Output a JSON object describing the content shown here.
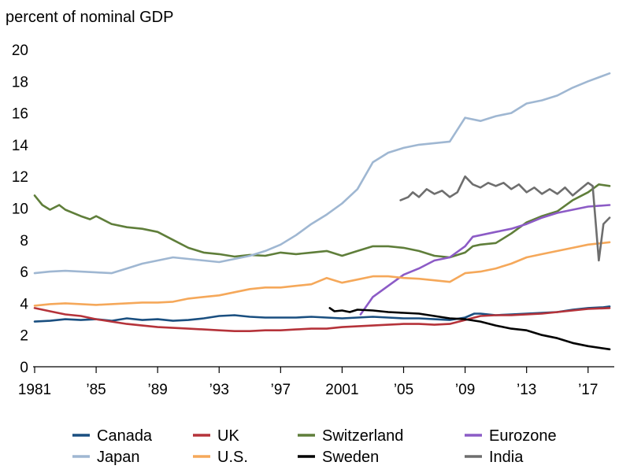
{
  "chart_data": {
    "type": "line",
    "title": "",
    "xlabel": "",
    "ylabel": "percent of nominal GDP",
    "xlim": [
      1981,
      2018.6
    ],
    "ylim": [
      0,
      20
    ],
    "y_ticks": [
      0,
      2,
      4,
      6,
      8,
      10,
      12,
      14,
      16,
      18,
      20
    ],
    "x_ticks": [
      {
        "value": 1981,
        "label": "1981"
      },
      {
        "value": 1985,
        "label": "’85"
      },
      {
        "value": 1989,
        "label": "’89"
      },
      {
        "value": 1993,
        "label": "’93"
      },
      {
        "value": 1997,
        "label": "’97"
      },
      {
        "value": 2001,
        "label": "2001"
      },
      {
        "value": 2005,
        "label": "’05"
      },
      {
        "value": 2009,
        "label": "’09"
      },
      {
        "value": 2013,
        "label": "’13"
      },
      {
        "value": 2017,
        "label": "’17"
      }
    ],
    "grid": false,
    "legend_position": "bottom",
    "series": [
      {
        "name": "Canada",
        "color": "#1a4f80",
        "points": [
          [
            1981,
            2.85
          ],
          [
            1982,
            2.9
          ],
          [
            1983,
            3.0
          ],
          [
            1984,
            2.95
          ],
          [
            1985,
            3.0
          ],
          [
            1986,
            2.9
          ],
          [
            1987,
            3.05
          ],
          [
            1988,
            2.95
          ],
          [
            1989,
            3.0
          ],
          [
            1990,
            2.9
          ],
          [
            1991,
            2.95
          ],
          [
            1992,
            3.05
          ],
          [
            1993,
            3.2
          ],
          [
            1994,
            3.25
          ],
          [
            1995,
            3.15
          ],
          [
            1996,
            3.1
          ],
          [
            1997,
            3.1
          ],
          [
            1998,
            3.1
          ],
          [
            1999,
            3.15
          ],
          [
            2000,
            3.1
          ],
          [
            2001,
            3.05
          ],
          [
            2002,
            3.1
          ],
          [
            2003,
            3.15
          ],
          [
            2004,
            3.1
          ],
          [
            2005,
            3.05
          ],
          [
            2006,
            3.05
          ],
          [
            2007,
            3.0
          ],
          [
            2008,
            2.95
          ],
          [
            2009,
            3.1
          ],
          [
            2009.6,
            3.35
          ],
          [
            2010,
            3.35
          ],
          [
            2011,
            3.25
          ],
          [
            2012,
            3.3
          ],
          [
            2013,
            3.35
          ],
          [
            2014,
            3.4
          ],
          [
            2015,
            3.45
          ],
          [
            2016,
            3.6
          ],
          [
            2017,
            3.7
          ],
          [
            2018,
            3.75
          ],
          [
            2018.4,
            3.8
          ]
        ]
      },
      {
        "name": "UK",
        "color": "#b5333a",
        "points": [
          [
            1981,
            3.7
          ],
          [
            1982,
            3.5
          ],
          [
            1983,
            3.3
          ],
          [
            1984,
            3.2
          ],
          [
            1985,
            3.0
          ],
          [
            1986,
            2.85
          ],
          [
            1987,
            2.7
          ],
          [
            1988,
            2.6
          ],
          [
            1989,
            2.5
          ],
          [
            1990,
            2.45
          ],
          [
            1991,
            2.4
          ],
          [
            1992,
            2.35
          ],
          [
            1993,
            2.3
          ],
          [
            1994,
            2.25
          ],
          [
            1995,
            2.25
          ],
          [
            1996,
            2.3
          ],
          [
            1997,
            2.3
          ],
          [
            1998,
            2.35
          ],
          [
            1999,
            2.4
          ],
          [
            2000,
            2.4
          ],
          [
            2001,
            2.5
          ],
          [
            2002,
            2.55
          ],
          [
            2003,
            2.6
          ],
          [
            2004,
            2.65
          ],
          [
            2005,
            2.7
          ],
          [
            2006,
            2.7
          ],
          [
            2007,
            2.65
          ],
          [
            2008,
            2.7
          ],
          [
            2009,
            2.95
          ],
          [
            2010,
            3.2
          ],
          [
            2011,
            3.25
          ],
          [
            2012,
            3.25
          ],
          [
            2013,
            3.3
          ],
          [
            2014,
            3.35
          ],
          [
            2015,
            3.45
          ],
          [
            2016,
            3.55
          ],
          [
            2017,
            3.65
          ],
          [
            2018.4,
            3.7
          ]
        ]
      },
      {
        "name": "Switzerland",
        "color": "#5f7e3a",
        "points": [
          [
            1981,
            10.8
          ],
          [
            1981.5,
            10.2
          ],
          [
            1982,
            9.9
          ],
          [
            1982.6,
            10.2
          ],
          [
            1983,
            9.9
          ],
          [
            1984,
            9.5
          ],
          [
            1984.6,
            9.3
          ],
          [
            1985,
            9.5
          ],
          [
            1986,
            9.0
          ],
          [
            1987,
            8.8
          ],
          [
            1988,
            8.7
          ],
          [
            1989,
            8.5
          ],
          [
            1990,
            8.0
          ],
          [
            1991,
            7.5
          ],
          [
            1992,
            7.2
          ],
          [
            1993,
            7.1
          ],
          [
            1994,
            6.95
          ],
          [
            1995,
            7.05
          ],
          [
            1996,
            7.0
          ],
          [
            1997,
            7.2
          ],
          [
            1998,
            7.1
          ],
          [
            1999,
            7.2
          ],
          [
            2000,
            7.3
          ],
          [
            2001,
            7.0
          ],
          [
            2002,
            7.3
          ],
          [
            2003,
            7.6
          ],
          [
            2004,
            7.6
          ],
          [
            2005,
            7.5
          ],
          [
            2006,
            7.3
          ],
          [
            2007,
            7.0
          ],
          [
            2008,
            6.9
          ],
          [
            2009,
            7.2
          ],
          [
            2009.5,
            7.6
          ],
          [
            2010,
            7.7
          ],
          [
            2011,
            7.8
          ],
          [
            2012,
            8.4
          ],
          [
            2013,
            9.1
          ],
          [
            2014,
            9.5
          ],
          [
            2015,
            9.8
          ],
          [
            2016,
            10.5
          ],
          [
            2017,
            11.0
          ],
          [
            2017.7,
            11.5
          ],
          [
            2018.4,
            11.4
          ]
        ]
      },
      {
        "name": "Eurozone",
        "color": "#8c5bc6",
        "points": [
          [
            2002.2,
            3.3
          ],
          [
            2003,
            4.4
          ],
          [
            2004,
            5.1
          ],
          [
            2005,
            5.8
          ],
          [
            2006,
            6.2
          ],
          [
            2007,
            6.7
          ],
          [
            2008,
            6.9
          ],
          [
            2009,
            7.6
          ],
          [
            2009.5,
            8.2
          ],
          [
            2010,
            8.3
          ],
          [
            2011,
            8.5
          ],
          [
            2012,
            8.7
          ],
          [
            2013,
            9.0
          ],
          [
            2014,
            9.4
          ],
          [
            2015,
            9.7
          ],
          [
            2016,
            9.9
          ],
          [
            2017,
            10.1
          ],
          [
            2018.4,
            10.2
          ]
        ]
      },
      {
        "name": "Japan",
        "color": "#9fb7d2",
        "points": [
          [
            1981,
            5.9
          ],
          [
            1982,
            6.0
          ],
          [
            1983,
            6.05
          ],
          [
            1984,
            6.0
          ],
          [
            1985,
            5.95
          ],
          [
            1986,
            5.9
          ],
          [
            1987,
            6.2
          ],
          [
            1988,
            6.5
          ],
          [
            1989,
            6.7
          ],
          [
            1990,
            6.9
          ],
          [
            1991,
            6.8
          ],
          [
            1992,
            6.7
          ],
          [
            1993,
            6.6
          ],
          [
            1994,
            6.8
          ],
          [
            1995,
            7.0
          ],
          [
            1996,
            7.3
          ],
          [
            1997,
            7.7
          ],
          [
            1998,
            8.3
          ],
          [
            1999,
            9.0
          ],
          [
            2000,
            9.6
          ],
          [
            2001,
            10.3
          ],
          [
            2002,
            11.2
          ],
          [
            2003,
            12.9
          ],
          [
            2004,
            13.5
          ],
          [
            2005,
            13.8
          ],
          [
            2006,
            14.0
          ],
          [
            2007,
            14.1
          ],
          [
            2008,
            14.2
          ],
          [
            2009,
            15.7
          ],
          [
            2010,
            15.5
          ],
          [
            2011,
            15.8
          ],
          [
            2012,
            16.0
          ],
          [
            2013,
            16.6
          ],
          [
            2014,
            16.8
          ],
          [
            2015,
            17.1
          ],
          [
            2016,
            17.6
          ],
          [
            2017,
            18.0
          ],
          [
            2018.4,
            18.5
          ]
        ]
      },
      {
        "name": "U.S.",
        "color": "#f5a85a",
        "points": [
          [
            1981,
            3.85
          ],
          [
            1982,
            3.95
          ],
          [
            1983,
            4.0
          ],
          [
            1984,
            3.95
          ],
          [
            1985,
            3.9
          ],
          [
            1986,
            3.95
          ],
          [
            1987,
            4.0
          ],
          [
            1988,
            4.05
          ],
          [
            1989,
            4.05
          ],
          [
            1990,
            4.1
          ],
          [
            1991,
            4.3
          ],
          [
            1992,
            4.4
          ],
          [
            1993,
            4.5
          ],
          [
            1994,
            4.7
          ],
          [
            1995,
            4.9
          ],
          [
            1996,
            5.0
          ],
          [
            1997,
            5.0
          ],
          [
            1998,
            5.1
          ],
          [
            1999,
            5.2
          ],
          [
            2000,
            5.6
          ],
          [
            2001,
            5.3
          ],
          [
            2002,
            5.5
          ],
          [
            2003,
            5.7
          ],
          [
            2004,
            5.7
          ],
          [
            2005,
            5.6
          ],
          [
            2006,
            5.55
          ],
          [
            2007,
            5.45
          ],
          [
            2008,
            5.35
          ],
          [
            2009,
            5.9
          ],
          [
            2010,
            6.0
          ],
          [
            2011,
            6.2
          ],
          [
            2012,
            6.5
          ],
          [
            2013,
            6.9
          ],
          [
            2014,
            7.1
          ],
          [
            2015,
            7.3
          ],
          [
            2016,
            7.5
          ],
          [
            2017,
            7.7
          ],
          [
            2018.4,
            7.85
          ]
        ]
      },
      {
        "name": "Sweden",
        "color": "#000000",
        "points": [
          [
            2000.2,
            3.7
          ],
          [
            2000.5,
            3.5
          ],
          [
            2001,
            3.55
          ],
          [
            2001.5,
            3.45
          ],
          [
            2002,
            3.6
          ],
          [
            2003,
            3.55
          ],
          [
            2004,
            3.45
          ],
          [
            2005,
            3.4
          ],
          [
            2006,
            3.35
          ],
          [
            2007,
            3.2
          ],
          [
            2008,
            3.05
          ],
          [
            2009,
            3.0
          ],
          [
            2010,
            2.85
          ],
          [
            2011,
            2.6
          ],
          [
            2012,
            2.4
          ],
          [
            2013,
            2.3
          ],
          [
            2014,
            2.0
          ],
          [
            2015,
            1.8
          ],
          [
            2016,
            1.5
          ],
          [
            2017,
            1.3
          ],
          [
            2018.4,
            1.1
          ]
        ]
      },
      {
        "name": "India",
        "color": "#6e6e6e",
        "points": [
          [
            2004.8,
            10.5
          ],
          [
            2005.3,
            10.7
          ],
          [
            2005.6,
            11.0
          ],
          [
            2006,
            10.7
          ],
          [
            2006.5,
            11.2
          ],
          [
            2007,
            10.9
          ],
          [
            2007.5,
            11.1
          ],
          [
            2008,
            10.7
          ],
          [
            2008.5,
            11.0
          ],
          [
            2009,
            12.0
          ],
          [
            2009.5,
            11.5
          ],
          [
            2010,
            11.3
          ],
          [
            2010.5,
            11.6
          ],
          [
            2011,
            11.4
          ],
          [
            2011.5,
            11.6
          ],
          [
            2012,
            11.2
          ],
          [
            2012.5,
            11.5
          ],
          [
            2013,
            11.0
          ],
          [
            2013.5,
            11.3
          ],
          [
            2014,
            10.9
          ],
          [
            2014.5,
            11.2
          ],
          [
            2015,
            10.9
          ],
          [
            2015.5,
            11.3
          ],
          [
            2016,
            10.8
          ],
          [
            2016.5,
            11.2
          ],
          [
            2017,
            11.6
          ],
          [
            2017.3,
            11.4
          ],
          [
            2017.7,
            6.7
          ],
          [
            2018,
            9.0
          ],
          [
            2018.4,
            9.4
          ]
        ]
      }
    ]
  }
}
